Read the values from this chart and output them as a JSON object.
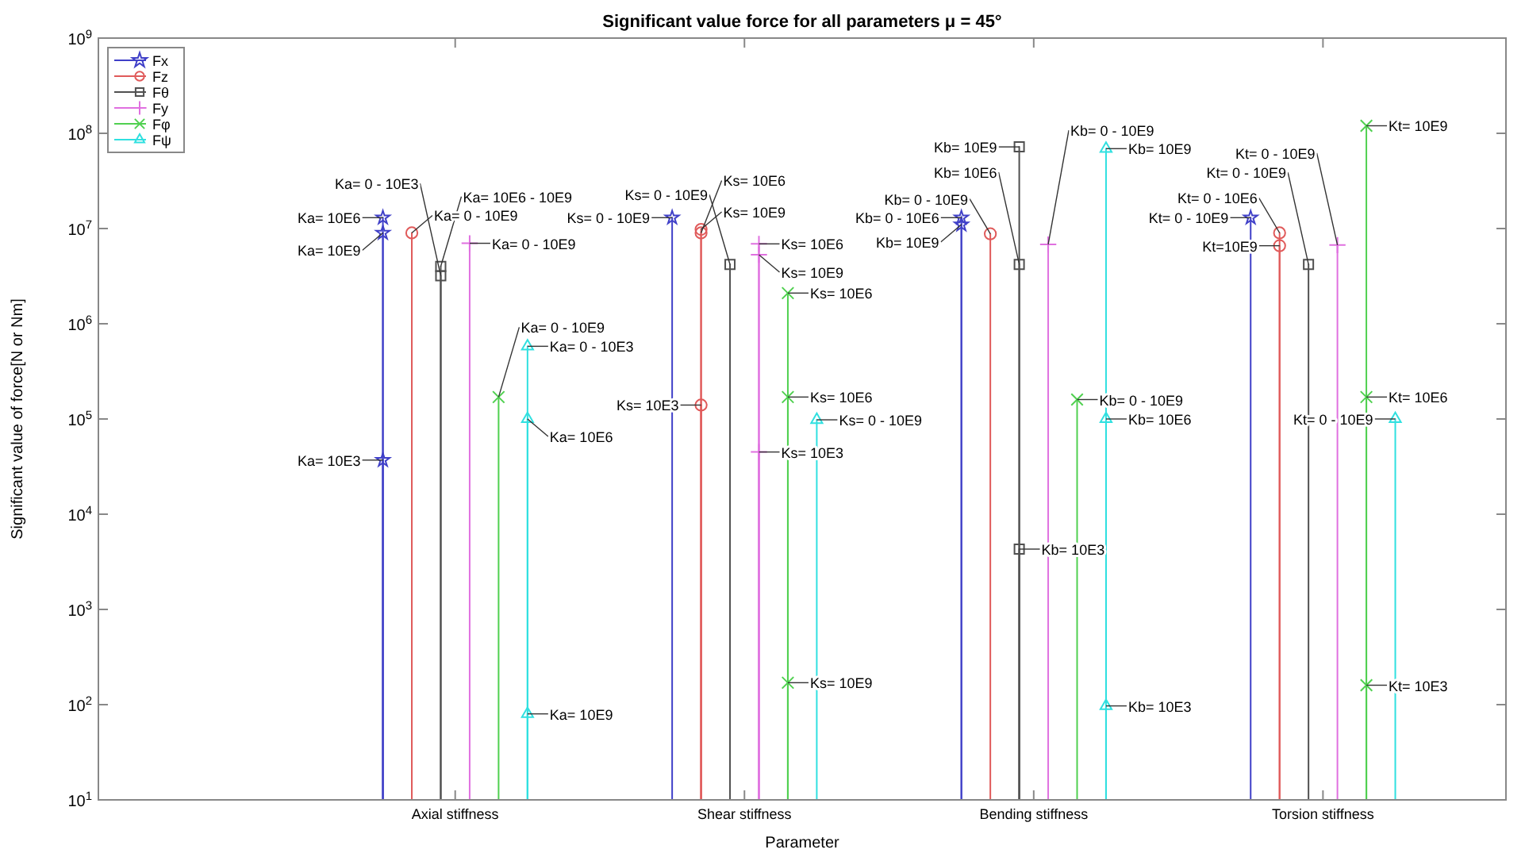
{
  "chart_data": {
    "type": "lollipop",
    "title": "Significant value force for all parameters μ = 45°",
    "xlabel": "Parameter",
    "ylabel": "Significant value of force[N or Nm]",
    "log": "y",
    "legend": "top left",
    "grid": false,
    "categories": [
      "Axial stiffness",
      "Shear stiffness",
      "Bending stiffness",
      "Torsion stiffness"
    ],
    "ylim": [
      10,
      1000000000
    ],
    "yticks": [
      {
        "value": 10,
        "label": "10$^{1}$"
      },
      {
        "value": 100,
        "label": "10$^{2}$"
      },
      {
        "value": 1000,
        "label": "10$^{3}$"
      },
      {
        "value": 10000,
        "label": "10$^{4}$"
      },
      {
        "value": 100000,
        "label": "10$^{5}$"
      },
      {
        "value": 1000000,
        "label": "10$^{6}$"
      },
      {
        "value": 10000000,
        "label": "10$^{7}$"
      },
      {
        "value": 100000000,
        "label": "10$^{8}$"
      },
      {
        "value": 1000000000,
        "label": "10$^{9}$"
      }
    ],
    "series": [
      {
        "name": "Fx",
        "color": "#4040c8",
        "marker": "star",
        "values": [
          13000000,
          13000000,
          13000000,
          13000000
        ],
        "value_labels": [
          "Ka= 10E6",
          "Ks= 0 - 10E9",
          "Kb= 0 - 10E6",
          "Kt= 0 - 10E9"
        ]
      },
      {
        "name": "Fz",
        "color": "#e05a5a",
        "marker": "circle",
        "values": [
          9000000,
          9800000,
          8800000,
          9000000
        ],
        "value_labels": [
          "Ka= 0 - 10E9",
          "Ks= 10E9",
          "Kb= 0 - 10E9",
          "Kt= 0 - 10E6"
        ]
      },
      {
        "name": "Fθ",
        "color": "#505050",
        "marker": "square",
        "values": [
          4000000,
          4200000,
          72000000,
          4200000
        ],
        "value_labels": [
          "Ka= 10E6 - 10E9",
          "Ks= 0 - 10E9",
          "Kb= 10E9",
          "Kt= 0 - 10E9"
        ]
      },
      {
        "name": "Fy",
        "color": "#e070e0",
        "marker": "plus",
        "values": [
          7000000,
          6900000,
          6800000,
          6700000
        ],
        "value_labels": [
          "Ka= 0 - 10E9",
          "Ks= 10E6",
          "Kb= 0 - 10E9",
          "Kt= 0 - 10E9"
        ]
      },
      {
        "name": "Fφ",
        "color": "#50d050",
        "marker": "cross",
        "values": [
          170000,
          2100000,
          160000,
          120000000
        ],
        "value_labels": [
          "Ka= 0 - 10E9",
          "Ks= 10E6",
          "Kb= 0 - 10E9",
          "Kt= 10E9"
        ]
      },
      {
        "name": "Fψ",
        "color": "#30e0e0",
        "marker": "triangle",
        "values": [
          580000,
          98000,
          69000000,
          100000
        ],
        "value_labels": [
          "Ka= 0 - 10E3",
          "Ks= 0 - 10E9",
          "Kb= 10E9",
          "Kt= 0 - 10E9"
        ]
      },
      {
        "color": "#4040c8",
        "marker": "star",
        "values": [
          9000000,
          null,
          11000000,
          null
        ],
        "value_labels": [
          "Ka= 10E9",
          null,
          "Kb= 10E9",
          null
        ]
      },
      {
        "color": "#4040c8",
        "marker": "star",
        "values": [
          37000,
          null,
          null,
          null
        ],
        "value_labels": [
          "Ka= 10E3",
          null,
          null,
          null
        ]
      },
      {
        "color": "#e05a5a",
        "marker": "circle",
        "values": [
          null,
          9000000,
          null,
          6600000
        ],
        "value_labels": [
          null,
          "Ks= 10E6",
          null,
          "Kt=10E9"
        ]
      },
      {
        "color": "#e05a5a",
        "marker": "circle",
        "values": [
          null,
          140000,
          null,
          null
        ],
        "value_labels": [
          null,
          "Ks= 10E3",
          null,
          null
        ]
      },
      {
        "color": "#505050",
        "marker": "square",
        "values": [
          3200000,
          null,
          4200000,
          null
        ],
        "value_labels": [
          "Ka= 0 - 10E3",
          null,
          "Kb= 10E6",
          null
        ]
      },
      {
        "color": "#505050",
        "marker": "square",
        "values": [
          null,
          null,
          4300,
          null
        ],
        "value_labels": [
          null,
          null,
          "Kb= 10E3",
          null
        ]
      },
      {
        "color": "#e070e0",
        "marker": "plus",
        "values": [
          null,
          5300000,
          null,
          null
        ],
        "value_labels": [
          null,
          "Ks= 10E9",
          null,
          null
        ]
      },
      {
        "color": "#e070e0",
        "marker": "plus",
        "values": [
          null,
          45000,
          null,
          null
        ],
        "value_labels": [
          null,
          "Ks= 10E3",
          null,
          null
        ]
      },
      {
        "color": "#50d050",
        "marker": "cross",
        "values": [
          null,
          170000,
          null,
          170000
        ],
        "value_labels": [
          null,
          "Ks= 10E6",
          null,
          "Kt= 10E6"
        ]
      },
      {
        "color": "#50d050",
        "marker": "cross",
        "values": [
          null,
          170,
          null,
          160
        ],
        "value_labels": [
          null,
          "Ks= 10E9",
          null,
          "Kt= 10E3"
        ]
      },
      {
        "color": "#30e0e0",
        "marker": "triangle",
        "values": [
          100000,
          null,
          100000,
          null
        ],
        "value_labels": [
          "Ka= 10E6",
          null,
          "Kb= 10E6",
          null
        ]
      },
      {
        "color": "#30e0e0",
        "marker": "triangle",
        "values": [
          80,
          null,
          97,
          null
        ],
        "value_labels": [
          "Ka= 10E9",
          null,
          "Kb= 10E3",
          null
        ]
      }
    ]
  }
}
